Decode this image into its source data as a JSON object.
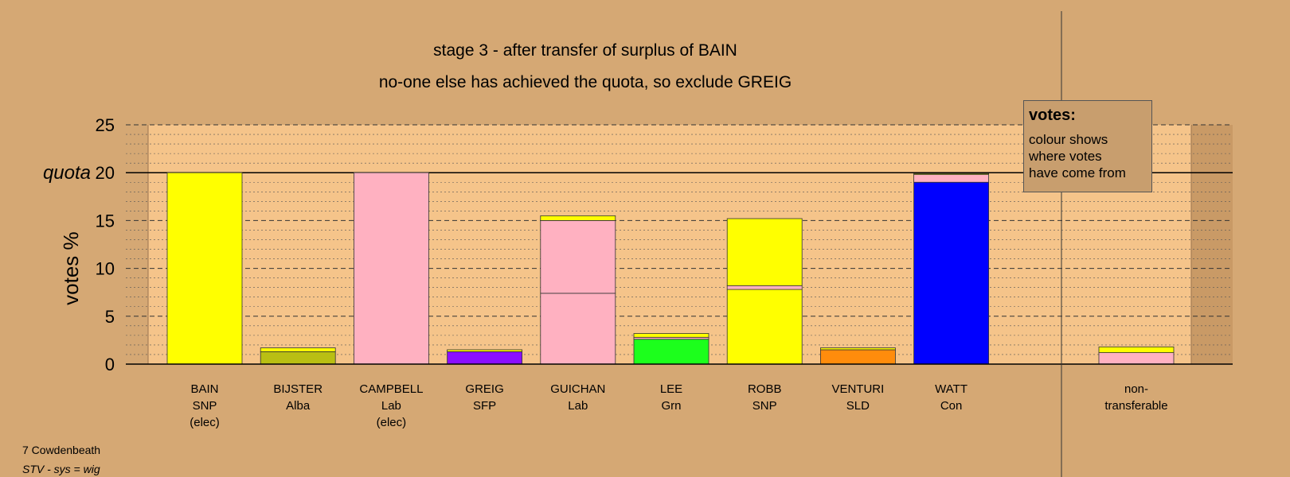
{
  "header": {
    "title": "stage 3 - after transfer of surplus of BAIN",
    "subtitle": "no-one else has achieved the quota, so exclude GREIG"
  },
  "legend": {
    "title": "votes:",
    "text": "colour shows\nwhere votes\nhave come from"
  },
  "footer": {
    "ward": "7 Cowdenbeath",
    "system": "STV - sys = wig"
  },
  "colors": {
    "background": "#d5a874",
    "plot_background": "#f5c48a",
    "SNP": "#ffff00",
    "Lab": "#ffb1c1",
    "Alba": "#b9bf13",
    "SFP": "#8b0fff",
    "Grn": "#1cff1c",
    "SLD": "#ff8c0c",
    "Con": "#0000ff"
  },
  "chart_data": {
    "type": "bar",
    "stacked": true,
    "ylabel": "votes %",
    "ylim": [
      0,
      25
    ],
    "yticks": [
      0,
      5,
      10,
      15,
      20,
      25
    ],
    "quota": 20,
    "quota_label": "quota",
    "grid": "dashed major, dotted minor",
    "categories": [
      {
        "lines": [
          "BAIN",
          "SNP",
          "(elec)"
        ],
        "segments": [
          {
            "party": "SNP",
            "value": 20.0
          }
        ]
      },
      {
        "lines": [
          "BIJSTER",
          "Alba"
        ],
        "segments": [
          {
            "party": "Alba",
            "value": 1.3
          },
          {
            "party": "SNP",
            "value": 0.4
          }
        ]
      },
      {
        "lines": [
          "CAMPBELL",
          "Lab",
          "(elec)"
        ],
        "segments": [
          {
            "party": "Lab",
            "value": 20.0
          }
        ]
      },
      {
        "lines": [
          "GREIG",
          "SFP"
        ],
        "segments": [
          {
            "party": "SFP",
            "value": 1.3
          },
          {
            "party": "SNP",
            "value": 0.2
          }
        ]
      },
      {
        "lines": [
          "GUICHAN",
          "Lab"
        ],
        "segments": [
          {
            "party": "Lab",
            "value": 7.4
          },
          {
            "party": "Lab",
            "value": 7.6
          },
          {
            "party": "SNP",
            "value": 0.5
          }
        ]
      },
      {
        "lines": [
          "LEE",
          "Grn"
        ],
        "segments": [
          {
            "party": "Grn",
            "value": 2.6
          },
          {
            "party": "Lab",
            "value": 0.2
          },
          {
            "party": "SNP",
            "value": 0.4
          }
        ]
      },
      {
        "lines": [
          "ROBB",
          "SNP"
        ],
        "segments": [
          {
            "party": "SNP",
            "value": 7.8
          },
          {
            "party": "Lab",
            "value": 0.4
          },
          {
            "party": "SNP",
            "value": 7.0
          }
        ]
      },
      {
        "lines": [
          "VENTURI",
          "SLD"
        ],
        "segments": [
          {
            "party": "SLD",
            "value": 1.5
          },
          {
            "party": "SNP",
            "value": 0.2
          }
        ]
      },
      {
        "lines": [
          "WATT",
          "Con"
        ],
        "segments": [
          {
            "party": "Con",
            "value": 19.0
          },
          {
            "party": "Lab",
            "value": 0.8
          },
          {
            "party": "SNP",
            "value": 0.1
          }
        ]
      }
    ],
    "nontransferable": {
      "lines": [
        "non-",
        "transferable"
      ],
      "segments": [
        {
          "party": "Lab",
          "value": 1.2
        },
        {
          "party": "SNP",
          "value": 0.6
        }
      ]
    }
  }
}
